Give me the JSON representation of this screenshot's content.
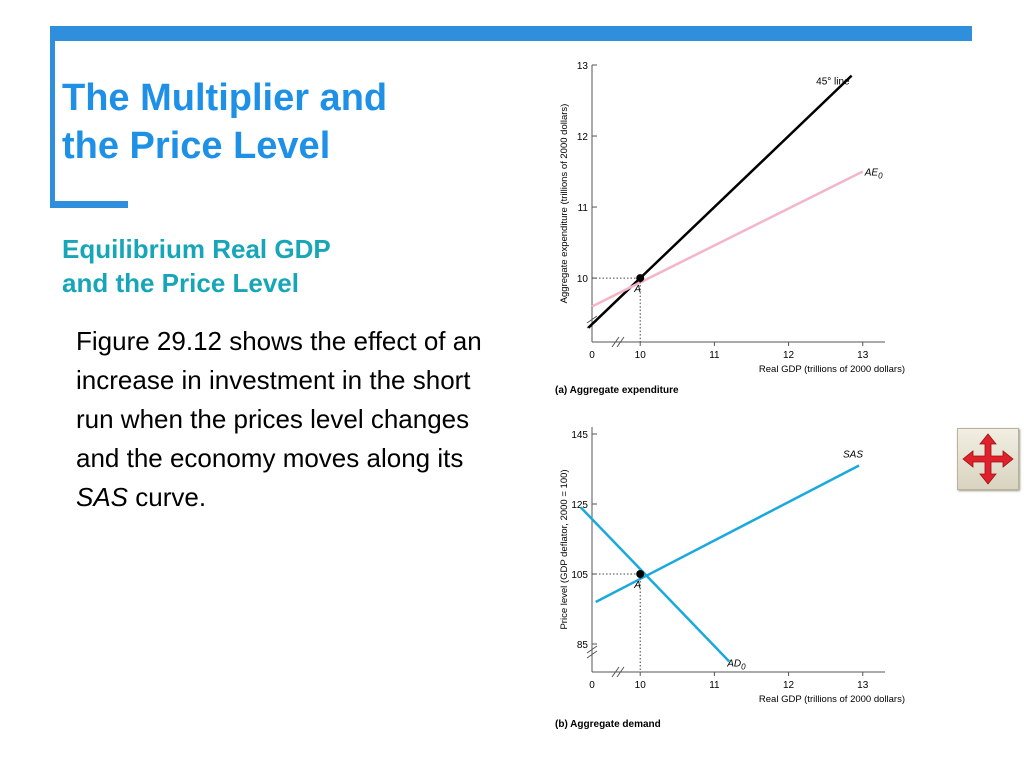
{
  "slide": {
    "title_line1": "The Multiplier and",
    "title_line2": "the Price Level",
    "subtitle_line1": "Equilibrium Real GDP",
    "subtitle_line2": "and the Price Level",
    "body_part1": "Figure 29.12 shows the effect of an increase in investment in the short run when the prices level changes and the economy moves along its ",
    "body_italic": "SAS",
    "body_part2": " curve.",
    "colors": {
      "title": "#1e90e6",
      "subtitle": "#16a6b8",
      "accent_bar": "#2f8fdd"
    },
    "nav_icon": "move-arrows-icon"
  },
  "chart_data": [
    {
      "type": "line",
      "caption": "(a) Aggregate expenditure",
      "xlabel": "Real GDP (trillions of 2000 dollars)",
      "ylabel": "Aggregate expenditure (trillions of 2000 dollars)",
      "x_ticks": [
        "0",
        "10",
        "11",
        "12",
        "13"
      ],
      "y_ticks": [
        "10",
        "11",
        "12",
        "13"
      ],
      "xlim": [
        9.35,
        13.3
      ],
      "ylim": [
        9.1,
        13
      ],
      "axis_break": true,
      "series": [
        {
          "name": "45° line",
          "color": "#000000",
          "x": [
            9.3,
            12.85
          ],
          "y": [
            9.3,
            12.85
          ]
        },
        {
          "name": "AE",
          "sub": "0",
          "color": "#f4b6c6",
          "x": [
            9.35,
            13.0
          ],
          "y": [
            9.6,
            11.5
          ]
        }
      ],
      "point": {
        "label": "A",
        "x": 10,
        "y": 10
      }
    },
    {
      "type": "line",
      "caption": "(b) Aggregate demand",
      "xlabel": "Real GDP (trillions of 2000 dollars)",
      "ylabel": "Price level (GDP deflator, 2000 = 100)",
      "x_ticks": [
        "0",
        "10",
        "11",
        "12",
        "13"
      ],
      "y_ticks": [
        "85",
        "105",
        "125",
        "145"
      ],
      "xlim": [
        9.35,
        13.3
      ],
      "ylim": [
        77,
        147
      ],
      "axis_break": true,
      "series": [
        {
          "name": "SAS",
          "color": "#1aa9de",
          "x": [
            9.4,
            12.95
          ],
          "y": [
            97,
            136
          ]
        },
        {
          "name": "AD",
          "sub": "0",
          "color": "#1aa9de",
          "x": [
            9.2,
            11.2
          ],
          "y": [
            124,
            80
          ]
        }
      ],
      "point": {
        "label": "A",
        "x": 10,
        "y": 105
      }
    }
  ]
}
